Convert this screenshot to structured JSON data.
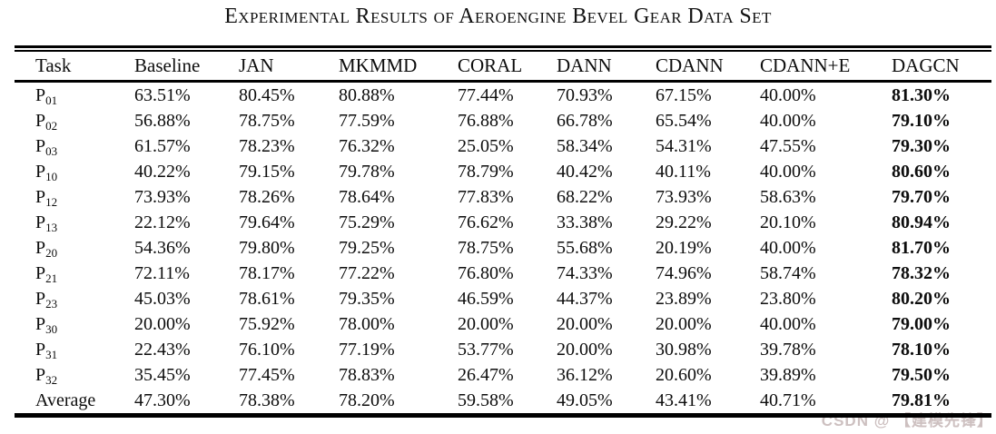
{
  "title": "Experimental Results of Aeroengine Bevel Gear Data Set",
  "watermark": "CSDN @ 【建模先锋】",
  "colors": {
    "text": "#0d0d0d",
    "rule": "#000000",
    "watermark": "#cdc0c0"
  },
  "table": {
    "columns": [
      "Task",
      "Baseline",
      "JAN",
      "MKMMD",
      "CORAL",
      "DANN",
      "CDANN",
      "CDANN+E",
      "DAGCN"
    ],
    "bold_column": "DAGCN",
    "rows": [
      {
        "task_base": "P",
        "task_sub": "01",
        "values": [
          "63.51%",
          "80.45%",
          "80.88%",
          "77.44%",
          "70.93%",
          "67.15%",
          "40.00%",
          "81.30%"
        ]
      },
      {
        "task_base": "P",
        "task_sub": "02",
        "values": [
          "56.88%",
          "78.75%",
          "77.59%",
          "76.88%",
          "66.78%",
          "65.54%",
          "40.00%",
          "79.10%"
        ]
      },
      {
        "task_base": "P",
        "task_sub": "03",
        "values": [
          "61.57%",
          "78.23%",
          "76.32%",
          "25.05%",
          "58.34%",
          "54.31%",
          "47.55%",
          "79.30%"
        ]
      },
      {
        "task_base": "P",
        "task_sub": "10",
        "values": [
          "40.22%",
          "79.15%",
          "79.78%",
          "78.79%",
          "40.42%",
          "40.11%",
          "40.00%",
          "80.60%"
        ]
      },
      {
        "task_base": "P",
        "task_sub": "12",
        "values": [
          "73.93%",
          "78.26%",
          "78.64%",
          "77.83%",
          "68.22%",
          "73.93%",
          "58.63%",
          "79.70%"
        ]
      },
      {
        "task_base": "P",
        "task_sub": "13",
        "values": [
          "22.12%",
          "79.64%",
          "75.29%",
          "76.62%",
          "33.38%",
          "29.22%",
          "20.10%",
          "80.94%"
        ]
      },
      {
        "task_base": "P",
        "task_sub": "20",
        "values": [
          "54.36%",
          "79.80%",
          "79.25%",
          "78.75%",
          "55.68%",
          "20.19%",
          "40.00%",
          "81.70%"
        ]
      },
      {
        "task_base": "P",
        "task_sub": "21",
        "values": [
          "72.11%",
          "78.17%",
          "77.22%",
          "76.80%",
          "74.33%",
          "74.96%",
          "58.74%",
          "78.32%"
        ]
      },
      {
        "task_base": "P",
        "task_sub": "23",
        "values": [
          "45.03%",
          "78.61%",
          "79.35%",
          "46.59%",
          "44.37%",
          "23.89%",
          "23.80%",
          "80.20%"
        ]
      },
      {
        "task_base": "P",
        "task_sub": "30",
        "values": [
          "20.00%",
          "75.92%",
          "78.00%",
          "20.00%",
          "20.00%",
          "20.00%",
          "40.00%",
          "79.00%"
        ]
      },
      {
        "task_base": "P",
        "task_sub": "31",
        "values": [
          "22.43%",
          "76.10%",
          "77.19%",
          "53.77%",
          "20.00%",
          "30.98%",
          "39.78%",
          "78.10%"
        ]
      },
      {
        "task_base": "P",
        "task_sub": "32",
        "values": [
          "35.45%",
          "77.45%",
          "78.83%",
          "26.47%",
          "36.12%",
          "20.60%",
          "39.89%",
          "79.50%"
        ]
      },
      {
        "task_base": "Average",
        "task_sub": "",
        "values": [
          "47.30%",
          "78.38%",
          "78.20%",
          "59.58%",
          "49.05%",
          "43.41%",
          "40.71%",
          "79.81%"
        ]
      }
    ]
  }
}
